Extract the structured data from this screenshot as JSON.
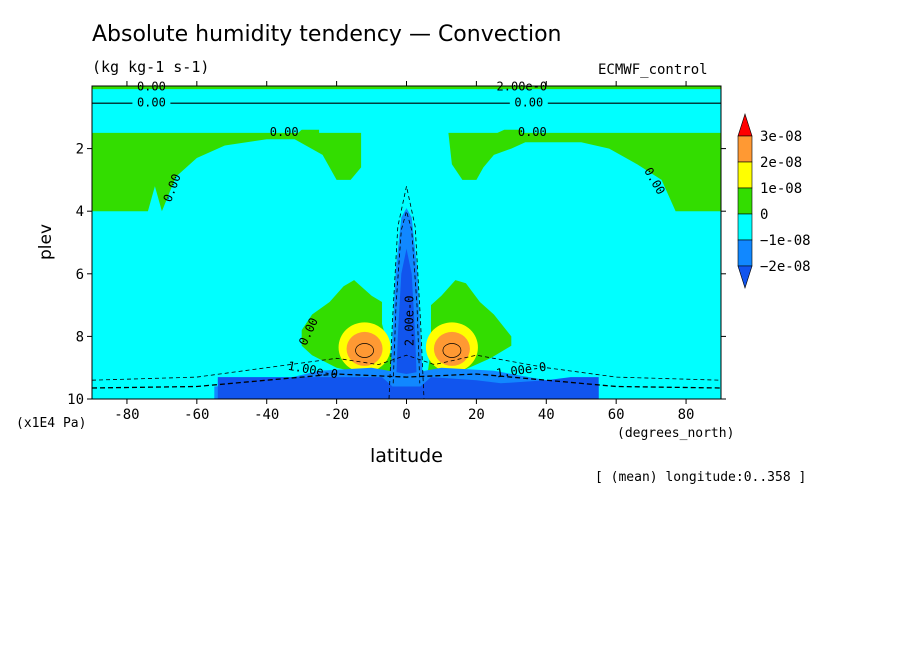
{
  "chart_data": {
    "type": "heatmap",
    "title": "Absolute humidity tendency — Convection",
    "units": "(kg kg-1 s-1)",
    "dataset": "ECMWF_control",
    "xlabel": "latitude",
    "ylabel": "plev",
    "x_unit": "(degrees_north)",
    "y_unit": "(x1E4 Pa)",
    "xlim": [
      -90,
      90
    ],
    "ylim": [
      10,
      0
    ],
    "x_ticks": [
      -80,
      -60,
      -40,
      -20,
      0,
      20,
      40,
      60,
      80
    ],
    "y_ticks": [
      2,
      4,
      6,
      8,
      10
    ],
    "footnote": "[ (mean) longitude:0..358 ]",
    "legend": {
      "placement": "right",
      "labels": [
        "3e-08",
        "2e-08",
        "1e-08",
        "0",
        "−1e-08",
        "−2e-08"
      ],
      "colors": [
        "#ff0000",
        "#ff9933",
        "#ffff00",
        "#33dd00",
        "#00ffff",
        "#1188ff",
        "#1155ee"
      ]
    },
    "contour_labels": [
      "0.00",
      "2.00e-0",
      "1.00e-0"
    ],
    "regions": [
      {
        "name": "left-green-band",
        "value": "0 to 1e-08",
        "lat_range": [
          -90,
          -25
        ],
        "plev_range": [
          1.5,
          4.0
        ]
      },
      {
        "name": "right-green-band",
        "value": "0 to 1e-08",
        "lat_range": [
          12,
          90
        ],
        "plev_range": [
          1.5,
          4.0
        ]
      },
      {
        "name": "left-moistening-max",
        "value": "3e-08",
        "lat": -12,
        "plev": 8.4
      },
      {
        "name": "right-moistening-max",
        "value": "3e-08",
        "lat": 13,
        "plev": 8.4
      },
      {
        "name": "equatorial-drying-column",
        "value": "-2e-08",
        "lat_range": [
          -3,
          3
        ],
        "plev_range": [
          4.0,
          9.5
        ]
      },
      {
        "name": "boundary-layer-drying",
        "value": "-2e-08",
        "lat_range": [
          -55,
          55
        ],
        "plev_range": [
          9.3,
          10
        ]
      }
    ]
  }
}
